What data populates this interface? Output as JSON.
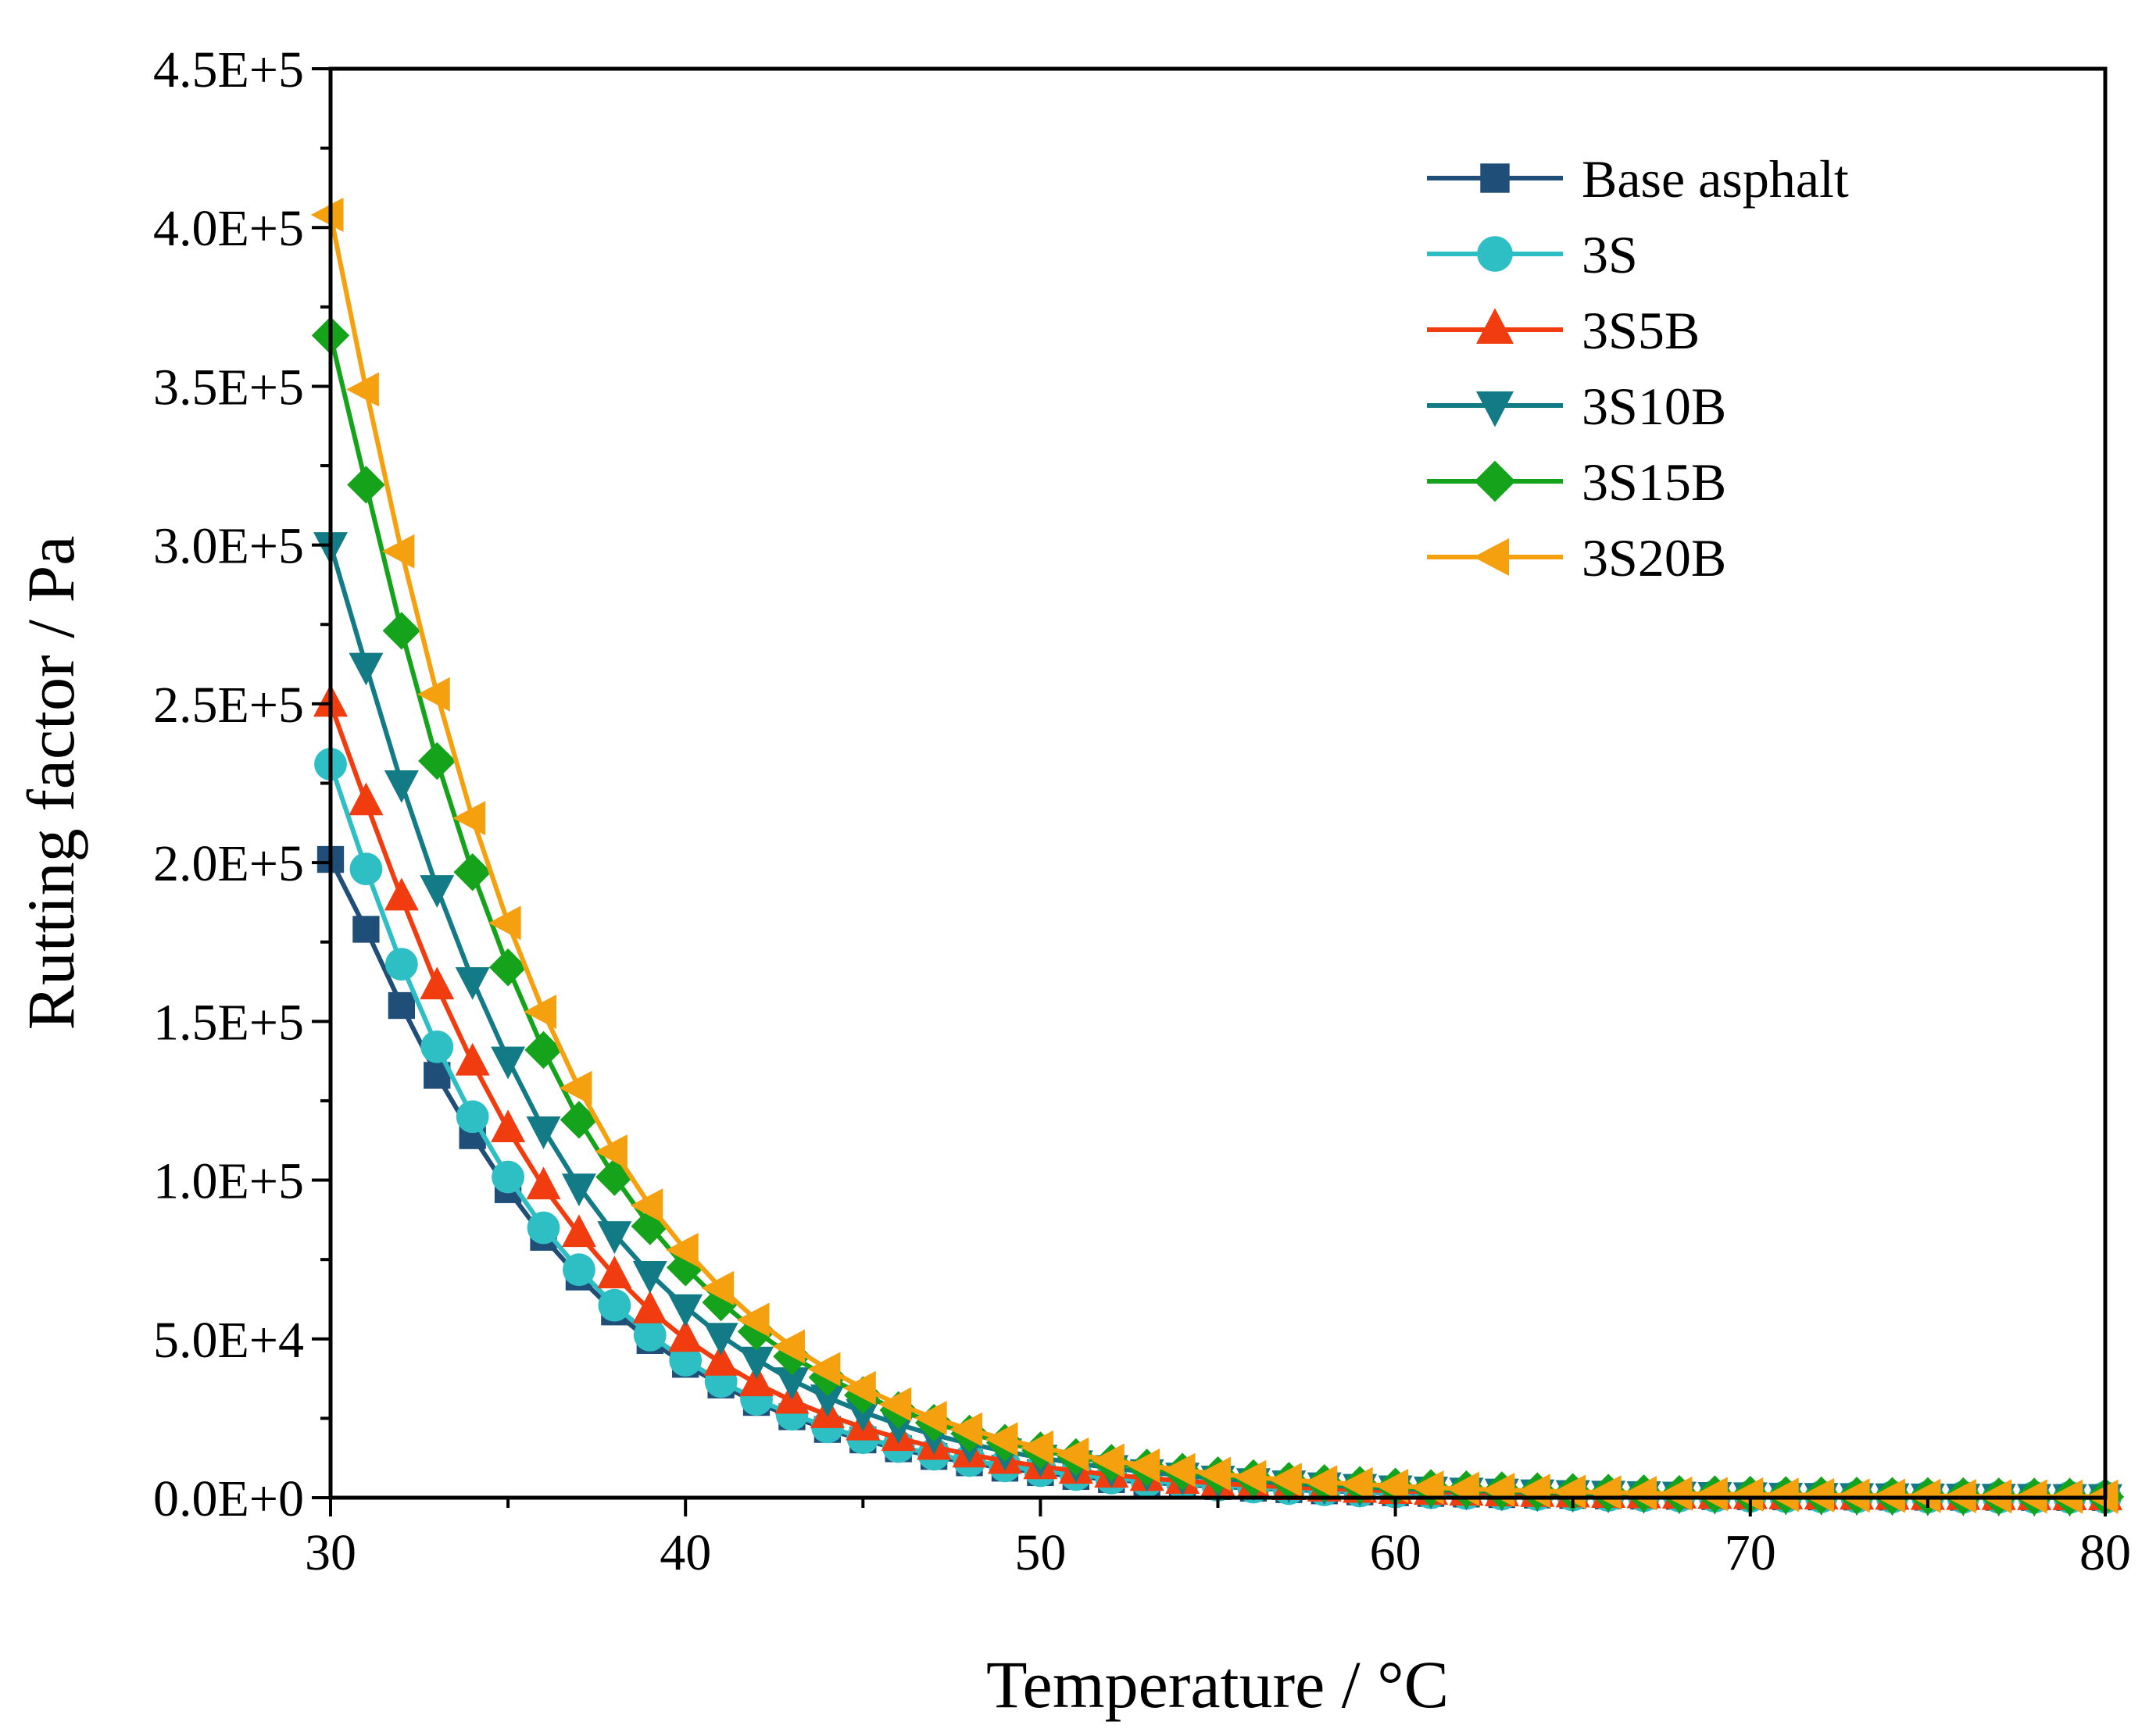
{
  "chart_data": {
    "type": "line",
    "title": "",
    "xlabel": "Temperature / °C",
    "ylabel": "Rutting factor / Pa",
    "xlim": [
      30,
      80
    ],
    "ylim": [
      0,
      450000
    ],
    "xticks": [
      30,
      40,
      50,
      60,
      70,
      80
    ],
    "xtick_labels": [
      "30",
      "40",
      "50",
      "60",
      "70",
      "80"
    ],
    "yticks": [
      0,
      50000,
      100000,
      150000,
      200000,
      250000,
      300000,
      350000,
      400000,
      450000
    ],
    "ytick_labels": [
      "0.0E+0",
      "5.0E+4",
      "1.0E+5",
      "1.5E+5",
      "2.0E+5",
      "2.5E+5",
      "3.0E+5",
      "3.5E+5",
      "4.0E+5",
      "4.5E+5"
    ],
    "grid": false,
    "legend_position": "top-right",
    "x": [
      30,
      31,
      32,
      33,
      34,
      35,
      36,
      37,
      38,
      39,
      40,
      41,
      42,
      43,
      44,
      45,
      46,
      47,
      48,
      49,
      50,
      51,
      52,
      53,
      54,
      55,
      56,
      57,
      58,
      59,
      60,
      61,
      62,
      63,
      64,
      65,
      66,
      67,
      68,
      69,
      70,
      71,
      72,
      73,
      74,
      75,
      76,
      77,
      78,
      79,
      80
    ],
    "series": [
      {
        "name": "Base asphalt",
        "color": "#1f4e79",
        "marker": "square",
        "values": [
          201000,
          179000,
          155000,
          133000,
          114000,
          97000,
          82000,
          69500,
          58500,
          49500,
          42000,
          35500,
          30000,
          25500,
          21500,
          18200,
          15400,
          13000,
          11000,
          9300,
          7900,
          6700,
          5700,
          4850,
          4130,
          3510,
          2990,
          2540,
          2160,
          1840,
          1570,
          1340,
          1140,
          970,
          830,
          710,
          600,
          510,
          440,
          370,
          320,
          270,
          230,
          200,
          170,
          145,
          125,
          105,
          90,
          77,
          66
        ]
      },
      {
        "name": "3S",
        "color": "#2ebfc4",
        "marker": "circle",
        "values": [
          231000,
          198000,
          168000,
          142000,
          120000,
          101000,
          85000,
          71800,
          60600,
          51200,
          43300,
          36600,
          31000,
          26300,
          22300,
          18900,
          16100,
          13700,
          11700,
          10000,
          8500,
          7300,
          6200,
          5300,
          4550,
          3900,
          3340,
          2870,
          2460,
          2110,
          1810,
          1560,
          1340,
          1150,
          990,
          850,
          730,
          630,
          540,
          470,
          400,
          350,
          300,
          260,
          220,
          190,
          165,
          140,
          120,
          105,
          90
        ]
      },
      {
        "name": "3S5B",
        "color": "#f03c0f",
        "marker": "triangle-up",
        "values": [
          250000,
          219000,
          189000,
          161000,
          137000,
          116000,
          98000,
          83000,
          70000,
          59000,
          50000,
          42500,
          36000,
          30500,
          26000,
          22100,
          18800,
          16000,
          13600,
          11600,
          9900,
          8450,
          7220,
          6170,
          5280,
          4520,
          3870,
          3320,
          2850,
          2450,
          2100,
          1810,
          1560,
          1340,
          1160,
          1000,
          860,
          740,
          640,
          550,
          480,
          410,
          360,
          310,
          270,
          230,
          200,
          170,
          150,
          130,
          110
        ]
      },
      {
        "name": "3S10B",
        "color": "#137b86",
        "marker": "triangle-down",
        "values": [
          300000,
          262000,
          225000,
          192000,
          163000,
          138000,
          116000,
          98000,
          83000,
          70500,
          60000,
          51000,
          43500,
          37000,
          31600,
          27000,
          23100,
          19800,
          17000,
          14600,
          12600,
          10850,
          9350,
          8070,
          6970,
          6030,
          5220,
          4520,
          3920,
          3400,
          2960,
          2570,
          2240,
          1950,
          1700,
          1480,
          1290,
          1130,
          990,
          860,
          760,
          660,
          580,
          510,
          450,
          390,
          350,
          300,
          270,
          230,
          210
        ]
      },
      {
        "name": "3S15B",
        "color": "#14a31a",
        "marker": "diamond",
        "values": [
          366000,
          319000,
          273000,
          232000,
          197000,
          167000,
          141000,
          119000,
          101000,
          85500,
          72500,
          61500,
          52300,
          44500,
          37900,
          32300,
          27600,
          23600,
          20200,
          17300,
          14900,
          12800,
          11000,
          9500,
          8200,
          7100,
          6150,
          5330,
          4630,
          4030,
          3510,
          3060,
          2670,
          2340,
          2050,
          1800,
          1580,
          1390,
          1220,
          1080,
          950,
          840,
          740,
          660,
          580,
          520,
          460,
          410,
          360,
          320,
          290
        ]
      },
      {
        "name": "3S20B",
        "color": "#f5a00e",
        "marker": "triangle-left",
        "values": [
          404000,
          349000,
          298000,
          253000,
          214000,
          181000,
          153000,
          129000,
          109000,
          92000,
          78000,
          66000,
          56000,
          47600,
          40500,
          34500,
          29400,
          25100,
          21500,
          18400,
          15800,
          13600,
          11700,
          10100,
          8700,
          7500,
          6480,
          5610,
          4870,
          4230,
          3680,
          3210,
          2800,
          2450,
          2150,
          1880,
          1650,
          1450,
          1280,
          1130,
          1000,
          880,
          780,
          690,
          610,
          540,
          480,
          430,
          380,
          340,
          300
        ]
      }
    ]
  }
}
